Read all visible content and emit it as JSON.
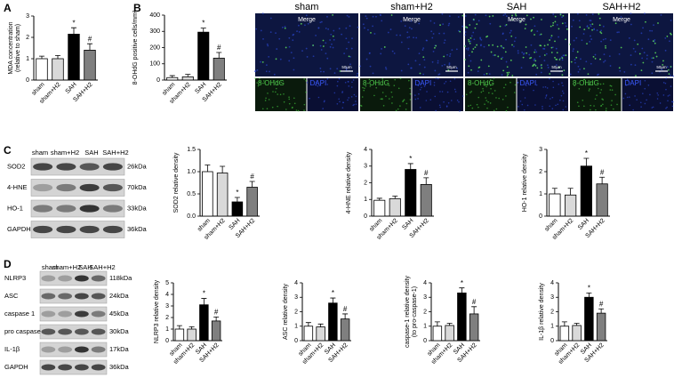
{
  "panel_labels": [
    "A",
    "B",
    "C",
    "D"
  ],
  "microscopy": {
    "columns": [
      "sham",
      "sham+H2",
      "SAH",
      "SAH+H2"
    ],
    "merge_label": "Merge",
    "scale_bar": "50μm",
    "channels": [
      "8-OHdG",
      "DAPI"
    ]
  },
  "blots": [
    {
      "lanes": [
        "sham",
        "sham+H2",
        "SAH",
        "SAH+H2"
      ],
      "rows": [
        {
          "protein": "SOD2",
          "kda": "26kDa"
        },
        {
          "protein": "4-HNE",
          "kda": "70kDa"
        },
        {
          "protein": "HO-1",
          "kda": "33kDa"
        },
        {
          "protein": "GAPDH",
          "kda": "36kDa"
        }
      ]
    },
    {
      "lanes": [
        "sham",
        "sham+H2",
        "SAH",
        "SAH+H2"
      ],
      "rows": [
        {
          "protein": "NLRP3",
          "kda": "118kDa"
        },
        {
          "protein": "ASC",
          "kda": "24kDa"
        },
        {
          "protein": "caspase 1",
          "kda": "45kDa"
        },
        {
          "protein": "pro caspase",
          "kda": "30kDa"
        },
        {
          "protein": "IL-1β",
          "kda": "17kDa"
        },
        {
          "protein": "GAPDH",
          "kda": "36kDa"
        }
      ]
    }
  ],
  "chart_data": [
    {
      "type": "bar",
      "ylabel": [
        "MDA  concentration",
        "(relative to sham)"
      ],
      "categories": [
        "sham",
        "sham+H2",
        "SAH",
        "SAH+H2"
      ],
      "values": [
        1.0,
        1.0,
        2.15,
        1.4
      ],
      "errors": [
        0.12,
        0.15,
        0.3,
        0.3
      ],
      "significance": [
        null,
        null,
        "*",
        "#"
      ],
      "colors": [
        "#ffffff",
        "#d9d9d9",
        "#000000",
        "#7f7f7f"
      ],
      "ylim": [
        0,
        3
      ],
      "yticks": [
        0,
        1,
        2,
        3
      ]
    },
    {
      "type": "bar",
      "ylabel": [
        "8-OHdG positive cells/mm²"
      ],
      "categories": [
        "sham",
        "sham+H2",
        "SAH",
        "SAH+H2"
      ],
      "values": [
        15,
        20,
        295,
        135
      ],
      "errors": [
        12,
        15,
        25,
        35
      ],
      "significance": [
        null,
        null,
        "*",
        "#"
      ],
      "colors": [
        "#ffffff",
        "#d9d9d9",
        "#000000",
        "#7f7f7f"
      ],
      "ylim": [
        0,
        400
      ],
      "yticks": [
        0,
        100,
        200,
        300,
        400
      ]
    },
    {
      "type": "bar",
      "ylabel": [
        "SOD2 relative density"
      ],
      "categories": [
        "sham",
        "sham+H2",
        "SAH",
        "SAH+H2"
      ],
      "values": [
        1.0,
        0.97,
        0.32,
        0.65
      ],
      "errors": [
        0.15,
        0.15,
        0.1,
        0.13
      ],
      "significance": [
        null,
        null,
        "*",
        "#"
      ],
      "colors": [
        "#ffffff",
        "#d9d9d9",
        "#000000",
        "#7f7f7f"
      ],
      "ylim": [
        0,
        1.5
      ],
      "yticks": [
        {
          "value": 0,
          "label": "0.0"
        },
        {
          "value": 0.5,
          "label": "0.5"
        },
        {
          "value": 1,
          "label": "1.0"
        },
        {
          "value": 1.5,
          "label": "1.5"
        }
      ]
    },
    {
      "type": "bar",
      "ylabel": [
        "4-HNE relative density"
      ],
      "categories": [
        "sham",
        "sham+H2",
        "SAH",
        "SAH+H2"
      ],
      "values": [
        0.95,
        1.05,
        2.8,
        1.9
      ],
      "errors": [
        0.12,
        0.15,
        0.35,
        0.4
      ],
      "significance": [
        null,
        null,
        "*",
        "#"
      ],
      "colors": [
        "#ffffff",
        "#d9d9d9",
        "#000000",
        "#7f7f7f"
      ],
      "ylim": [
        0,
        4
      ],
      "yticks": [
        0,
        1,
        2,
        3,
        4
      ]
    },
    {
      "type": "bar",
      "ylabel": [
        "HO-1 relative density"
      ],
      "categories": [
        "sham",
        "sham+H2",
        "SAH",
        "SAH+H2"
      ],
      "values": [
        1.0,
        0.95,
        2.25,
        1.45
      ],
      "errors": [
        0.25,
        0.3,
        0.35,
        0.3
      ],
      "significance": [
        null,
        null,
        "*",
        "#"
      ],
      "colors": [
        "#ffffff",
        "#d9d9d9",
        "#000000",
        "#7f7f7f"
      ],
      "ylim": [
        0,
        3
      ],
      "yticks": [
        0,
        1,
        2,
        3
      ]
    },
    {
      "type": "bar",
      "ylabel": [
        "NLRP3 relative density"
      ],
      "categories": [
        "sham",
        "sham+H2",
        "SAH",
        "SAH+H2"
      ],
      "values": [
        1.0,
        1.0,
        3.1,
        1.7
      ],
      "errors": [
        0.3,
        0.2,
        0.55,
        0.35
      ],
      "significance": [
        null,
        null,
        "*",
        "#"
      ],
      "colors": [
        "#ffffff",
        "#d9d9d9",
        "#000000",
        "#7f7f7f"
      ],
      "ylim": [
        0,
        5
      ],
      "yticks": [
        0,
        1,
        2,
        3,
        4,
        5
      ]
    },
    {
      "type": "bar",
      "ylabel": [
        "ASC relative density"
      ],
      "categories": [
        "sham",
        "sham+H2",
        "SAH",
        "SAH+H2"
      ],
      "values": [
        1.0,
        0.95,
        2.6,
        1.5
      ],
      "errors": [
        0.25,
        0.2,
        0.35,
        0.35
      ],
      "significance": [
        null,
        null,
        "*",
        "#"
      ],
      "colors": [
        "#ffffff",
        "#d9d9d9",
        "#000000",
        "#7f7f7f"
      ],
      "ylim": [
        0,
        4
      ],
      "yticks": [
        0,
        1,
        2,
        3,
        4
      ]
    },
    {
      "type": "bar",
      "ylabel": [
        "caspase-1 relative density",
        "(to pro-caspase-1)"
      ],
      "categories": [
        "sham",
        "sham+H2",
        "SAH",
        "SAH+H2"
      ],
      "values": [
        1.0,
        1.05,
        3.3,
        1.85
      ],
      "errors": [
        0.3,
        0.15,
        0.35,
        0.5
      ],
      "significance": [
        null,
        null,
        "*",
        "#"
      ],
      "colors": [
        "#ffffff",
        "#d9d9d9",
        "#000000",
        "#7f7f7f"
      ],
      "ylim": [
        0,
        4
      ],
      "yticks": [
        0,
        1,
        2,
        3,
        4
      ]
    },
    {
      "type": "bar",
      "ylabel": [
        "IL-1β relative density"
      ],
      "categories": [
        "sham",
        "sham+H2",
        "SAH",
        "SAH+H2"
      ],
      "values": [
        1.0,
        1.05,
        3.0,
        1.9
      ],
      "errors": [
        0.3,
        0.15,
        0.3,
        0.3
      ],
      "significance": [
        null,
        null,
        "*",
        "#"
      ],
      "colors": [
        "#ffffff",
        "#d9d9d9",
        "#000000",
        "#7f7f7f"
      ],
      "ylim": [
        0,
        4
      ],
      "yticks": [
        0,
        1,
        2,
        3,
        4
      ]
    }
  ]
}
